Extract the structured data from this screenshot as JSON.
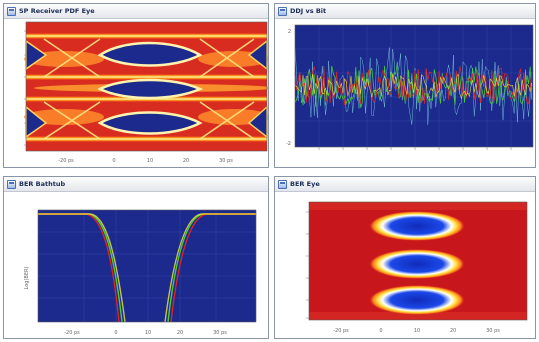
{
  "window_background": "#ffffff",
  "panes": [
    {
      "id": "rx-pdf-eye",
      "title": "SP Receiver PDF Eye",
      "y_ticks": [
        "",
        "",
        "",
        "",
        "",
        ""
      ],
      "x_ticks": [
        "-20 ps",
        "0",
        "10",
        "20",
        "30 ps"
      ]
    },
    {
      "id": "ddj-vs-bit",
      "title": "DDJ vs Bit",
      "y_ticks": [
        "2",
        "",
        "",
        "",
        "",
        "",
        "-2"
      ],
      "x_ticks": [
        "",
        "",
        "",
        "",
        "",
        "",
        "",
        "",
        "",
        ""
      ]
    },
    {
      "id": "ber-bathtub",
      "title": "BER Bathtub",
      "y_label": "Log(BER)",
      "y_ticks": [
        "",
        "",
        "",
        "",
        "",
        ""
      ],
      "x_ticks": [
        "-20 ps",
        "0",
        "10",
        "20",
        "30 ps"
      ]
    },
    {
      "id": "ber-eye",
      "title": "BER Eye",
      "y_ticks": [
        "",
        "",
        "",
        "",
        "",
        ""
      ],
      "x_ticks": [
        "-20 ps",
        "0",
        "10",
        "20",
        "30 ps"
      ]
    }
  ],
  "colors": {
    "plot_background": "#1b2a8c",
    "ber_eye_background": "#c8171c",
    "trace_green": "#44d23a",
    "trace_red": "#e0241f",
    "trace_yellow": "#f3e640",
    "trace_cyan": "#8ee6ef",
    "title_text": "#1a2a55"
  }
}
